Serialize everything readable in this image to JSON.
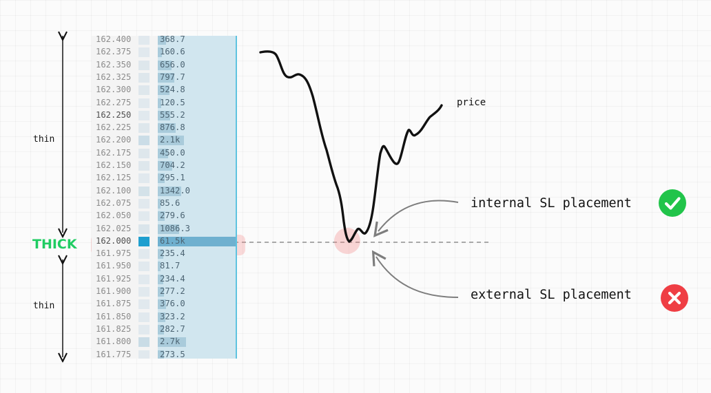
{
  "ladder": {
    "rows": [
      {
        "price": "162.400",
        "volume": "368.7",
        "bar": 0.11,
        "cell": 0.1
      },
      {
        "price": "162.375",
        "volume": "160.6",
        "bar": 0.05,
        "cell": 0.1
      },
      {
        "price": "162.350",
        "volume": "656.0",
        "bar": 0.18,
        "cell": 0.15
      },
      {
        "price": "162.325",
        "volume": "797.7",
        "bar": 0.21,
        "cell": 0.15
      },
      {
        "price": "162.300",
        "volume": "524.8",
        "bar": 0.15,
        "cell": 0.15
      },
      {
        "price": "162.275",
        "volume": "120.5",
        "bar": 0.04,
        "cell": 0.1
      },
      {
        "price": "162.250",
        "volume": "555.2",
        "bar": 0.16,
        "cell": 0.1,
        "bold": true
      },
      {
        "price": "162.225",
        "volume": "876.8",
        "bar": 0.23,
        "cell": 0.15
      },
      {
        "price": "162.200",
        "volume": "2.1k",
        "bar": 0.34,
        "cell": 0.45
      },
      {
        "price": "162.175",
        "volume": "450.0",
        "bar": 0.13,
        "cell": 0.15
      },
      {
        "price": "162.150",
        "volume": "704.2",
        "bar": 0.19,
        "cell": 0.15
      },
      {
        "price": "162.125",
        "volume": "295.1",
        "bar": 0.09,
        "cell": 0.1
      },
      {
        "price": "162.100",
        "volume": "1342.0",
        "bar": 0.3,
        "cell": 0.3
      },
      {
        "price": "162.075",
        "volume": "85.6",
        "bar": 0.03,
        "cell": 0.1
      },
      {
        "price": "162.050",
        "volume": "279.6",
        "bar": 0.09,
        "cell": 0.1
      },
      {
        "price": "162.025",
        "volume": "1086.3",
        "bar": 0.27,
        "cell": 0.2
      },
      {
        "price": "162.000",
        "volume": "61.5k",
        "bar": 1.0,
        "cell": 1.0,
        "bold": true,
        "thick": true
      },
      {
        "price": "161.975",
        "volume": "235.4",
        "bar": 0.07,
        "cell": 0.1
      },
      {
        "price": "161.950",
        "volume": "81.7",
        "bar": 0.03,
        "cell": 0.1
      },
      {
        "price": "161.925",
        "volume": "234.4",
        "bar": 0.07,
        "cell": 0.1
      },
      {
        "price": "161.900",
        "volume": "277.2",
        "bar": 0.08,
        "cell": 0.1
      },
      {
        "price": "161.875",
        "volume": "376.0",
        "bar": 0.11,
        "cell": 0.1
      },
      {
        "price": "161.850",
        "volume": "323.2",
        "bar": 0.1,
        "cell": 0.1
      },
      {
        "price": "161.825",
        "volume": "282.7",
        "bar": 0.08,
        "cell": 0.1
      },
      {
        "price": "161.800",
        "volume": "2.7k",
        "bar": 0.36,
        "cell": 0.5
      },
      {
        "price": "161.775",
        "volume": "273.5",
        "bar": 0.08,
        "cell": 0.1
      }
    ]
  },
  "labels": {
    "thin_top": "thin",
    "thick": "THICK",
    "thin_bottom": "thin",
    "price": "price",
    "internal": "internal SL placement",
    "external": "external SL placement"
  },
  "icons": {
    "check": "check-icon",
    "cross": "x-icon"
  },
  "colors": {
    "thick_label": "#1fcc62",
    "check_badge": "#21c44a",
    "x_badge": "#ef3e44",
    "highlight": "#f48282",
    "volume_column": "#d1e6ef",
    "max_level": "#1f9fcf"
  }
}
